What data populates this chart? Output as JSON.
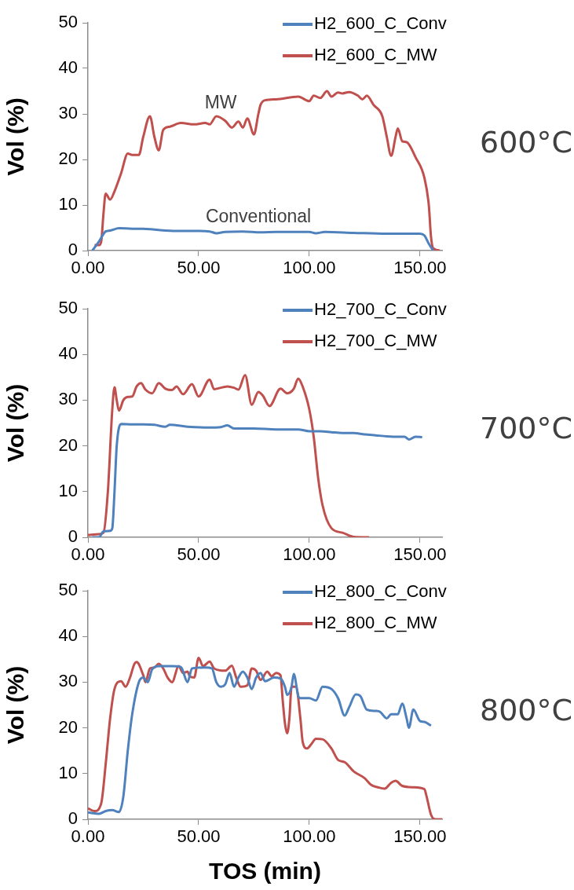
{
  "chart_data": [
    {
      "type": "line",
      "ylabel": "Vol (%)",
      "xlim": [
        0,
        160
      ],
      "xticks": [
        {
          "value": 0,
          "label": "0.00"
        },
        {
          "value": 50,
          "label": "50.00"
        },
        {
          "value": 100,
          "label": "100.00"
        },
        {
          "value": 150,
          "label": "150.00"
        }
      ],
      "ylim": [
        0,
        50
      ],
      "yticks": [
        0,
        10,
        20,
        30,
        40,
        50
      ],
      "grid": false,
      "legend": "top right",
      "marker": "none",
      "annotations": [
        {
          "text": "MW",
          "x": 60,
          "y": 30
        },
        {
          "text": "Conventional",
          "x": 77,
          "y": 5
        },
        "600°C"
      ],
      "series": [
        {
          "name": "H2_600_C_Conv",
          "color": "#4f81bd",
          "x": [
            2,
            5,
            8,
            10,
            14,
            20,
            25,
            30,
            40,
            50,
            55,
            58,
            62,
            70,
            78,
            85,
            100,
            103,
            107,
            120,
            135,
            150,
            152,
            154,
            156
          ],
          "values": [
            0,
            2,
            4.2,
            4.4,
            4.9,
            4.8,
            4.8,
            4.6,
            4.3,
            4.3,
            4.2,
            3.8,
            4.1,
            4.2,
            4.0,
            4.1,
            4.1,
            3.8,
            4.1,
            3.9,
            3.7,
            3.7,
            3.3,
            1.5,
            0
          ]
        },
        {
          "name": "H2_600_C_MW",
          "color": "#c0504d",
          "x": [
            3,
            5,
            6,
            7,
            8,
            10,
            12,
            15,
            18,
            20,
            23,
            25,
            28,
            30,
            32,
            34,
            37,
            42,
            48,
            53,
            55,
            58,
            62,
            65,
            68,
            70,
            72,
            75,
            77,
            78,
            80,
            85,
            95,
            100,
            102,
            105,
            108,
            110,
            113,
            115,
            118,
            122,
            124,
            126,
            129,
            133,
            135,
            137,
            139,
            140,
            142,
            144,
            148,
            152,
            154,
            155,
            156,
            159
          ],
          "values": [
            1.2,
            1.2,
            2,
            8,
            12.5,
            11.2,
            13,
            17,
            21.3,
            21,
            21,
            25,
            29.5,
            25,
            22,
            26.5,
            27.2,
            28,
            27.7,
            28,
            27.7,
            29.5,
            28.5,
            27,
            28.3,
            27,
            29,
            25.5,
            30,
            32,
            33,
            33.2,
            33.8,
            32.8,
            34,
            33.5,
            35,
            33.8,
            34.7,
            34.5,
            34.8,
            34,
            33.2,
            34,
            32,
            29.5,
            25,
            20.8,
            25,
            26.8,
            24,
            23.8,
            20.5,
            16,
            10,
            3,
            0.5,
            0
          ]
        }
      ]
    },
    {
      "type": "line",
      "ylabel": "Vol (%)",
      "xlim": [
        0,
        160
      ],
      "xticks": [
        {
          "value": 0,
          "label": "0.00"
        },
        {
          "value": 50,
          "label": "50.00"
        },
        {
          "value": 100,
          "label": "100.00"
        },
        {
          "value": 150,
          "label": "150.00"
        }
      ],
      "ylim": [
        0,
        50
      ],
      "yticks": [
        0,
        10,
        20,
        30,
        40,
        50
      ],
      "grid": false,
      "legend": "top right",
      "marker": "none",
      "annotations": [
        "700°C"
      ],
      "series": [
        {
          "name": "H2_700_C_Conv",
          "color": "#4f81bd",
          "x": [
            2,
            5,
            7,
            10,
            11,
            12,
            13,
            15,
            20,
            25,
            30,
            35,
            37,
            45,
            55,
            60,
            63,
            66,
            75,
            85,
            95,
            100,
            105,
            110,
            115,
            120,
            125,
            130,
            135,
            140,
            143,
            145,
            148,
            151
          ],
          "values": [
            0,
            0,
            1.3,
            1.4,
            2,
            10,
            20,
            24.8,
            24.7,
            24.7,
            24.6,
            24.2,
            24.6,
            24.2,
            24,
            24.1,
            24.5,
            23.8,
            23.8,
            23.6,
            23.6,
            23.2,
            23.2,
            23,
            22.8,
            22.8,
            22.5,
            22.3,
            22.1,
            22,
            22,
            21.4,
            22,
            21.9
          ]
        },
        {
          "name": "H2_700_C_MW",
          "color": "#c0504d",
          "x": [
            0,
            5,
            7,
            9,
            11,
            12,
            13,
            14,
            16,
            18,
            20,
            22,
            24,
            26,
            29,
            32,
            35,
            38,
            40,
            43,
            47,
            50,
            55,
            57,
            63,
            66,
            68,
            71,
            74,
            77,
            79,
            82,
            87,
            90,
            93,
            95,
            97,
            100,
            102,
            104,
            106,
            110,
            115,
            120,
            127
          ],
          "values": [
            0.5,
            0.7,
            1,
            10,
            28,
            32.8,
            30,
            27.7,
            30,
            30.7,
            30.8,
            33,
            33.7,
            32.3,
            31.5,
            33.7,
            32.5,
            32.2,
            33,
            31.3,
            33.5,
            30.8,
            34.5,
            32.4,
            33,
            32.7,
            32.3,
            35.5,
            29,
            31.8,
            31,
            28.7,
            32.5,
            31.5,
            32.5,
            34.7,
            33,
            28,
            22,
            13,
            7,
            2,
            1,
            0.1,
            0
          ]
        }
      ]
    },
    {
      "type": "line",
      "xlabel": "TOS (min)",
      "ylabel": "Vol (%)",
      "xlim": [
        0,
        160
      ],
      "xticks": [
        {
          "value": 0,
          "label": "0.00"
        },
        {
          "value": 50,
          "label": "50.00"
        },
        {
          "value": 100,
          "label": "100.00"
        },
        {
          "value": 150,
          "label": "150.00"
        }
      ],
      "ylim": [
        0,
        50
      ],
      "yticks": [
        0,
        10,
        20,
        30,
        40,
        50
      ],
      "grid": false,
      "legend": "top right",
      "marker": "none",
      "annotations": [
        "800°C"
      ],
      "series": [
        {
          "name": "H2_800_C_Conv",
          "color": "#4f81bd",
          "x": [
            0,
            5,
            8,
            11,
            14,
            16,
            18,
            20,
            23,
            25,
            27,
            29,
            32,
            38,
            42,
            45,
            47,
            53,
            56,
            58,
            60,
            62,
            64,
            66,
            68,
            70,
            72,
            74,
            76,
            78,
            80,
            84,
            87,
            89,
            90,
            92,
            93,
            95,
            96,
            100,
            103,
            106,
            110,
            113,
            116,
            118,
            121,
            123,
            126,
            130,
            132,
            135,
            137,
            140,
            142,
            144,
            145,
            147,
            150,
            152,
            155
          ],
          "values": [
            1.5,
            1.2,
            1.8,
            2,
            1.6,
            5,
            15,
            23,
            30,
            31,
            30,
            32.8,
            33.5,
            33.5,
            33.3,
            30,
            33,
            33.2,
            33,
            30,
            29,
            29.5,
            32,
            29,
            31,
            32.3,
            31,
            28.5,
            31,
            32,
            30.2,
            31,
            30.8,
            29,
            27.2,
            29,
            31.8,
            27,
            26.5,
            26.5,
            26,
            29,
            28.5,
            26.5,
            22.7,
            24.5,
            27.3,
            27,
            24,
            23.7,
            23.5,
            22.1,
            23,
            23,
            25.3,
            22,
            20,
            24,
            21.5,
            21.3,
            20.5
          ]
        },
        {
          "name": "H2_800_C_MW",
          "color": "#c0504d",
          "x": [
            0,
            3,
            6,
            8,
            10,
            12,
            15,
            17,
            19,
            21,
            22,
            25,
            26,
            28,
            30,
            32,
            34,
            36,
            38,
            41,
            43,
            45,
            46,
            48,
            50,
            52,
            55,
            57,
            62,
            65,
            67,
            69,
            72,
            74,
            76,
            78,
            81,
            83,
            85,
            87,
            88,
            89,
            90,
            91,
            92,
            94,
            96,
            97,
            99,
            101,
            103,
            106,
            110,
            113,
            116,
            120,
            125,
            128,
            131,
            134,
            137,
            139,
            142,
            147,
            152,
            153,
            155,
            157,
            160
          ],
          "values": [
            2.4,
            1.8,
            3.5,
            12,
            22,
            28.5,
            30.2,
            29,
            31,
            34,
            34.4,
            31.5,
            30,
            33,
            33.2,
            34,
            33,
            31,
            30,
            33.5,
            32,
            32.3,
            31.3,
            31,
            35.3,
            33.5,
            34.5,
            33,
            32.5,
            33.6,
            31,
            29,
            29.3,
            33,
            32.5,
            30.5,
            32.3,
            31.3,
            32,
            31.5,
            26,
            21,
            18.8,
            22,
            29,
            29,
            22,
            17,
            15.5,
            16.5,
            17.6,
            17.5,
            15.5,
            13,
            12.5,
            10.5,
            9,
            7.5,
            7,
            6.7,
            8,
            8.4,
            7.3,
            7,
            6.6,
            5,
            1,
            0,
            0
          ]
        }
      ]
    }
  ]
}
